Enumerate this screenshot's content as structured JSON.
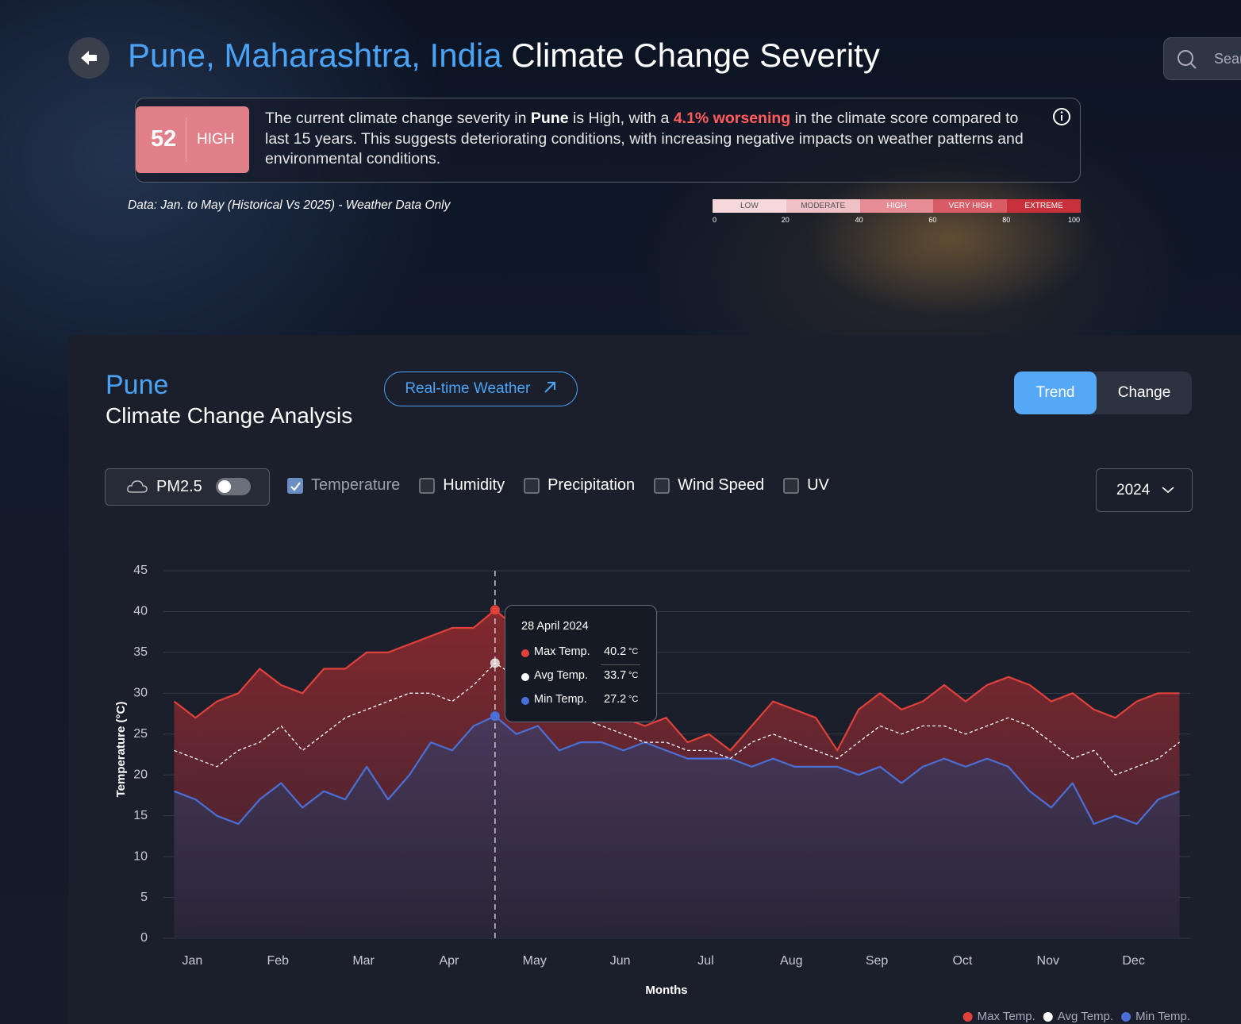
{
  "header": {
    "title_place": "Pune, Maharashtra, India",
    "title_rest": "Climate Change Severity",
    "search_placeholder": "Search"
  },
  "severity": {
    "score": 52,
    "level": "HIGH",
    "text": [
      "The current climate change severity in ",
      "Pune",
      " is High, with a ",
      "4.1% worsening",
      " in the climate score compared to last 15 years. This suggests deteriorating conditions, with increasing negative impacts on weather patterns and environmental conditions."
    ],
    "data_note": "Data: Jan. to May (Historical Vs 2025) - Weather Data Only",
    "scale": {
      "levels": [
        "LOW",
        "MODERATE",
        "HIGH",
        "VERY HIGH",
        "EXTREME"
      ],
      "colors": [
        "#f6d7da",
        "#efc0c4",
        "#e58c94",
        "#d95b65",
        "#c8303b"
      ],
      "ticks": [
        0,
        20,
        40,
        60,
        80,
        100
      ]
    }
  },
  "analysis": {
    "city": "Pune",
    "subtitle": "Climate Change Analysis",
    "realtime_button": "Real-time Weather",
    "tabs": [
      "Trend",
      "Change"
    ],
    "pm_label": "PM2.5",
    "metrics": [
      {
        "label": "Temperature",
        "checked": true
      },
      {
        "label": "Humidity",
        "checked": false
      },
      {
        "label": "Precipitation",
        "checked": false
      },
      {
        "label": "Wind Speed",
        "checked": false
      },
      {
        "label": "UV",
        "checked": false
      }
    ],
    "year": "2024"
  },
  "chart_data": {
    "type": "line",
    "xlabel": "Months",
    "ylabel": "Temperature (°C)",
    "categories": [
      null,
      "Jan",
      null,
      null,
      null,
      "Feb",
      null,
      null,
      null,
      "Mar",
      null,
      null,
      null,
      "Apr",
      null,
      null,
      null,
      "May",
      null,
      null,
      null,
      "Jun",
      null,
      null,
      null,
      "Jul",
      null,
      null,
      null,
      "Aug",
      null,
      null,
      null,
      "Sep",
      null,
      null,
      null,
      "Oct",
      null,
      null,
      null,
      "Nov",
      null,
      null,
      null,
      "Dec",
      null,
      null
    ],
    "series": [
      {
        "name": "Max Temp.",
        "color": "#e0413a",
        "values": [
          29,
          27,
          29,
          30,
          33,
          31,
          30,
          33,
          33,
          35,
          35,
          36,
          37,
          38,
          38,
          40.2,
          38,
          37,
          36,
          34,
          29,
          27,
          26,
          27,
          24,
          25,
          23,
          26,
          29,
          28,
          27,
          23,
          28,
          30,
          28,
          29,
          31,
          29,
          31,
          32,
          31,
          29,
          30,
          28,
          27,
          29,
          30,
          30
        ]
      },
      {
        "name": "Avg Temp.",
        "color": "#ffffff",
        "style": "dashed",
        "values": [
          23,
          22,
          21,
          23,
          24,
          26,
          23,
          25,
          27,
          28,
          29,
          30,
          30,
          29,
          31,
          33.7,
          32,
          30,
          28,
          27,
          26,
          25,
          24,
          24,
          23,
          23,
          22,
          24,
          25,
          24,
          23,
          22,
          24,
          26,
          25,
          26,
          26,
          25,
          26,
          27,
          26,
          24,
          22,
          23,
          20,
          21,
          22,
          24
        ]
      },
      {
        "name": "Min Temp.",
        "color": "#4a70d8",
        "values": [
          18,
          17,
          15,
          14,
          17,
          19,
          16,
          18,
          17,
          21,
          17,
          20,
          24,
          23,
          26,
          27.2,
          25,
          26,
          23,
          24,
          24,
          23,
          24,
          23,
          22,
          22,
          22,
          21,
          22,
          21,
          21,
          21,
          20,
          21,
          19,
          21,
          22,
          21,
          22,
          21,
          18,
          16,
          19,
          14,
          15,
          14,
          17,
          18
        ]
      }
    ],
    "ylim": [
      0,
      45
    ],
    "yticks": [
      0,
      5,
      10,
      15,
      20,
      25,
      30,
      35,
      40,
      45
    ],
    "grid": true,
    "legend": "bottom-right",
    "tooltip": {
      "date": "28 April 2024",
      "rows": [
        {
          "name": "Max Temp.",
          "value": 40.2,
          "unit": "°C"
        },
        {
          "name": "Avg Temp.",
          "value": 33.7,
          "unit": "°C"
        },
        {
          "name": "Min Temp.",
          "value": 27.2,
          "unit": "°C"
        }
      ]
    }
  }
}
